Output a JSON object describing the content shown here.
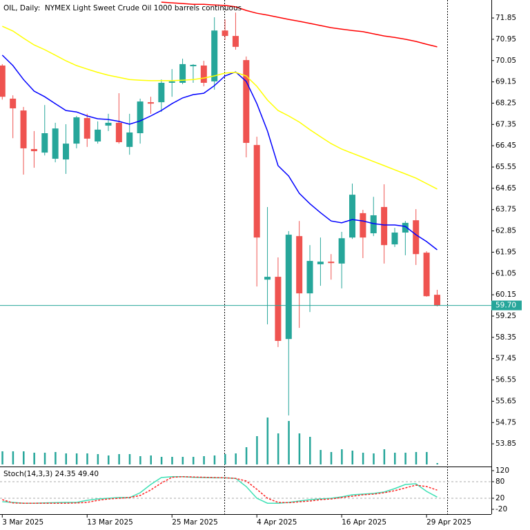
{
  "chart_data": [
    {
      "type": "candlestick",
      "title": "OIL, Daily:  NYMEX Light Sweet Crude Oil 1000 barrels continuous",
      "categories": [
        "3 Mar 2025",
        null,
        null,
        null,
        null,
        null,
        null,
        null,
        "13 Mar 2025",
        null,
        null,
        null,
        null,
        null,
        null,
        null,
        "25 Mar 2025",
        null,
        null,
        null,
        null,
        null,
        null,
        null,
        "4 Apr 2025",
        null,
        null,
        null,
        null,
        null,
        null,
        null,
        "16 Apr 2025",
        null,
        null,
        null,
        null,
        null,
        null,
        null,
        "29 Apr 2025",
        null
      ],
      "open": [
        69.84,
        68.44,
        67.94,
        66.31,
        66.16,
        65.9,
        65.87,
        66.54,
        67.62,
        66.63,
        67.3,
        67.42,
        66.4,
        66.98,
        68.29,
        68.29,
        69.11,
        69.11,
        69.81,
        69.84,
        69.17,
        71.32,
        71.09,
        70.07,
        66.48,
        60.79,
        60.91,
        58.28,
        62.63,
        60.21,
        61.44,
        61.55,
        61.47,
        62.57,
        63.6,
        62.75,
        63.86,
        62.28,
        62.78,
        63.3,
        61.93,
        60.15
      ],
      "high": [
        69.9,
        68.58,
        68.09,
        67.07,
        68.17,
        67.42,
        67.36,
        67.71,
        67.8,
        67.48,
        67.8,
        68.67,
        67.8,
        68.44,
        68.52,
        69.25,
        69.69,
        70.13,
        69.9,
        70.04,
        71.88,
        71.79,
        72.08,
        70.22,
        66.83,
        63.86,
        61.73,
        62.84,
        63.27,
        62.25,
        62.57,
        61.87,
        62.81,
        64.85,
        63.74,
        64.29,
        64.82,
        62.98,
        63.27,
        63.77,
        61.99,
        60.36
      ],
      "low": [
        68.4,
        66.77,
        65.23,
        65.52,
        66.04,
        65.75,
        65.26,
        66.34,
        66.4,
        66.54,
        67.07,
        66.54,
        66.07,
        66.54,
        67.8,
        67.88,
        68.52,
        69.05,
        69.11,
        68.96,
        68.82,
        70.92,
        70.51,
        65.96,
        60.5,
        58.9,
        57.94,
        55.05,
        58.75,
        59.42,
        60.53,
        60.79,
        60.42,
        62.51,
        61.7,
        62.63,
        61.47,
        62.17,
        61.82,
        61.41,
        60.07,
        59.66
      ],
      "close": [
        68.52,
        68.03,
        66.34,
        66.22,
        66.98,
        67.18,
        66.54,
        67.65,
        66.75,
        67.13,
        67.42,
        66.6,
        67.01,
        68.32,
        68.23,
        69.11,
        69.17,
        69.9,
        69.87,
        69.11,
        71.32,
        71.09,
        70.63,
        66.57,
        62.57,
        60.91,
        58.2,
        62.69,
        60.21,
        61.58,
        61.55,
        61.49,
        62.54,
        64.38,
        62.57,
        63.51,
        62.25,
        62.78,
        63.19,
        61.87,
        60.09,
        59.7
      ],
      "colors": {
        "up": "#26a69a",
        "down": "#ef5350"
      },
      "volume": [
        19,
        19,
        19,
        17,
        17,
        18,
        16,
        16,
        16,
        15,
        13,
        15,
        15,
        12,
        13,
        11,
        11,
        11,
        11,
        12,
        13,
        15,
        16,
        25,
        41,
        68,
        45,
        63,
        45,
        40,
        21,
        18,
        22,
        20,
        17,
        16,
        22,
        17,
        17,
        18,
        18,
        2
      ],
      "volume_color": "#26a69a",
      "series": [
        {
          "color": "#0000ff",
          "values": [
            70.28,
            69.84,
            69.25,
            68.76,
            68.52,
            68.23,
            67.94,
            67.88,
            67.71,
            67.59,
            67.56,
            67.48,
            67.36,
            67.5,
            67.71,
            67.94,
            68.23,
            68.47,
            68.61,
            68.67,
            68.99,
            69.4,
            69.57,
            69.17,
            68.23,
            67.07,
            65.61,
            65.17,
            64.44,
            64.0,
            63.62,
            63.27,
            63.19,
            63.33,
            63.27,
            63.16,
            63.1,
            63.1,
            63.04,
            62.69,
            62.4,
            62.05
          ]
        },
        {
          "color": "#ffff00",
          "values": [
            71.5,
            71.3,
            71.0,
            70.71,
            70.51,
            70.28,
            70.04,
            69.84,
            69.69,
            69.55,
            69.43,
            69.34,
            69.25,
            69.22,
            69.2,
            69.2,
            69.2,
            69.22,
            69.25,
            69.31,
            69.4,
            69.52,
            69.55,
            69.4,
            68.96,
            68.38,
            67.94,
            67.71,
            67.45,
            67.13,
            66.83,
            66.54,
            66.31,
            66.13,
            65.96,
            65.78,
            65.61,
            65.43,
            65.26,
            65.08,
            64.85,
            64.62
          ]
        },
        {
          "color": "#ff0000",
          "values": [
            null,
            null,
            null,
            null,
            null,
            null,
            null,
            null,
            null,
            null,
            null,
            null,
            null,
            null,
            null,
            72.52,
            72.49,
            72.46,
            72.43,
            72.43,
            72.4,
            72.38,
            72.32,
            72.17,
            72.05,
            71.97,
            71.88,
            71.79,
            71.71,
            71.62,
            71.53,
            71.44,
            71.38,
            71.32,
            71.27,
            71.18,
            71.09,
            71.03,
            70.95,
            70.86,
            70.74,
            70.63
          ]
        }
      ],
      "ylim": [
        52.92,
        72.61
      ],
      "yticks": [
        71.85,
        70.95,
        70.05,
        69.15,
        68.25,
        67.35,
        66.45,
        65.55,
        64.65,
        63.75,
        62.85,
        61.95,
        61.05,
        60.15,
        59.25,
        58.35,
        57.45,
        56.55,
        55.65,
        54.75,
        53.85
      ],
      "last_price": {
        "value": 59.7,
        "label": "59.70"
      },
      "last_price_color": "#26a69a"
    },
    {
      "type": "line",
      "title": "Stoch(14,3,3)",
      "series": [
        {
          "color": "#3ce0b4",
          "values": [
            7.5,
            5,
            2,
            2,
            3,
            4,
            5,
            5,
            12.5,
            17.5,
            20,
            22.5,
            22.5,
            40,
            70,
            95,
            98,
            98,
            96,
            95,
            94,
            94,
            92,
            62.5,
            20,
            2,
            2,
            5,
            10,
            15,
            17.5,
            20,
            25,
            32.5,
            35,
            37.5,
            42.5,
            55,
            70,
            72.5,
            45,
            24.35
          ]
        },
        {
          "color": "#ff2020",
          "dashed": true,
          "values": [
            15,
            3,
            2,
            2,
            2,
            2,
            2,
            3,
            5,
            12.5,
            17.5,
            20,
            22.5,
            30,
            50,
            75,
            96,
            98,
            97,
            96,
            95,
            94,
            92,
            82.5,
            52.5,
            20,
            5,
            4,
            7,
            10,
            15,
            17.5,
            22.5,
            27.5,
            32.5,
            35,
            40,
            47.5,
            57.5,
            67.5,
            62.5,
            49.4
          ],
          "value_labels": [
            null,
            null,
            null,
            null,
            null,
            null,
            null,
            null,
            null,
            null,
            null,
            null,
            null,
            null,
            null,
            null,
            null,
            null,
            null,
            null,
            null,
            null,
            null,
            null,
            null,
            null,
            null,
            null,
            null,
            null,
            null,
            null,
            null,
            null,
            null,
            null,
            null,
            null,
            null,
            null,
            null,
            "49.40"
          ]
        }
      ],
      "ylim": [
        -37.5,
        132.5
      ],
      "yticks": [
        120,
        80,
        20,
        -20
      ],
      "levels": [
        80,
        20
      ]
    }
  ]
}
